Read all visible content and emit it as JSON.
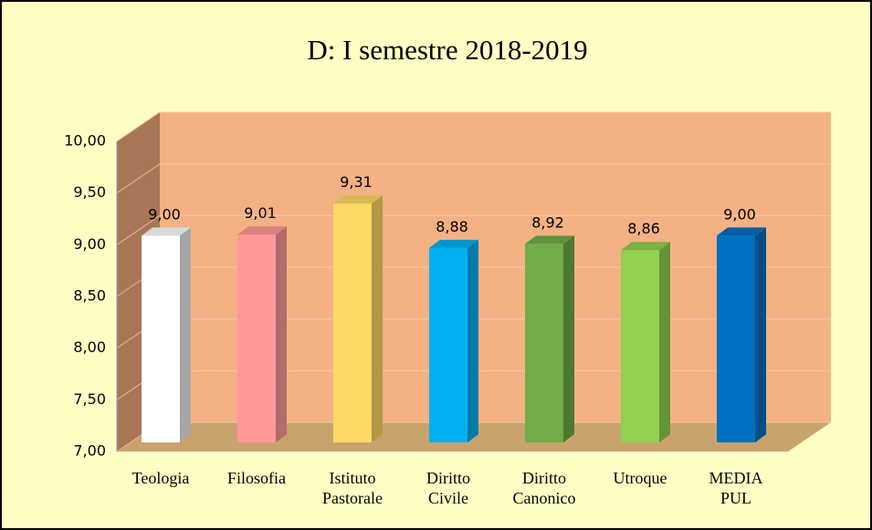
{
  "chart_data": {
    "type": "bar3d",
    "title": "D: I semestre 2018-2019",
    "categories": [
      "Teologia",
      "Filosofia",
      "Istituto Pastorale",
      "Diritto Civile",
      "Diritto Canonico",
      "Utroque",
      "MEDIA PUL"
    ],
    "values": [
      9.0,
      9.01,
      9.31,
      8.88,
      8.92,
      8.86,
      9.0
    ],
    "value_labels": [
      "9,00",
      "9,01",
      "9,31",
      "8,88",
      "8,92",
      "8,86",
      "9,00"
    ],
    "colors": [
      "#ffffff",
      "#ff9999",
      "#ffd966",
      "#00b0f0",
      "#70ad47",
      "#92d050",
      "#0070c0"
    ],
    "ylim": [
      7,
      10
    ],
    "yticks": [
      {
        "value": 7,
        "label": "7,00"
      },
      {
        "value": 7.5,
        "label": "7,50"
      },
      {
        "value": 8,
        "label": "8,00"
      },
      {
        "value": 8.5,
        "label": "8,50"
      },
      {
        "value": 9,
        "label": "9,00"
      },
      {
        "value": 9.5,
        "label": "9,50"
      },
      {
        "value": 10,
        "label": "10,00"
      }
    ],
    "grid": true
  }
}
